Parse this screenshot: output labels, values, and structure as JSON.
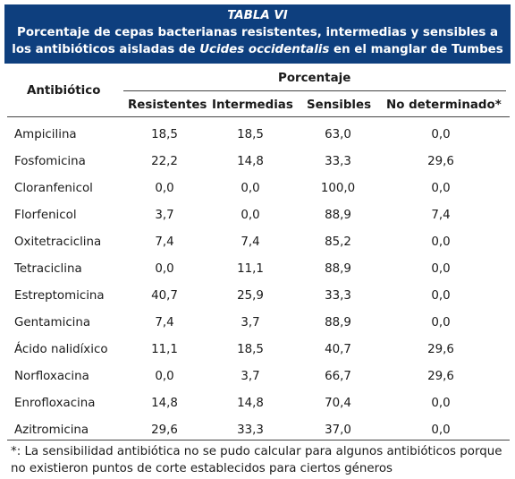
{
  "table": {
    "label": "TABLA VI",
    "title_line1": "Porcentaje de cepas bacterianas resistentes, intermedias y sensibles a",
    "title_line2_pre": "los antibióticos aisladas de ",
    "title_line2_species": "Ucides occidentalis",
    "title_line2_post": " en el manglar de Tumbes",
    "header": {
      "antibiotic": "Antibiótico",
      "group": "Porcentaje",
      "columns": [
        "Resistentes",
        "Intermedias",
        "Sensibles",
        "No determinado*"
      ]
    },
    "rows": [
      {
        "name": "Ampicilina",
        "values": [
          "18,5",
          "18,5",
          "63,0",
          "0,0"
        ]
      },
      {
        "name": "Fosfomicina",
        "values": [
          "22,2",
          "14,8",
          "33,3",
          "29,6"
        ]
      },
      {
        "name": "Cloranfenicol",
        "values": [
          "0,0",
          "0,0",
          "100,0",
          "0,0"
        ]
      },
      {
        "name": "Florfenicol",
        "values": [
          "3,7",
          "0,0",
          "88,9",
          "7,4"
        ]
      },
      {
        "name": "Oxitetraciclina",
        "values": [
          "7,4",
          "7,4",
          "85,2",
          "0,0"
        ]
      },
      {
        "name": "Tetraciclina",
        "values": [
          "0,0",
          "11,1",
          "88,9",
          "0,0"
        ]
      },
      {
        "name": "Estreptomicina",
        "values": [
          "40,7",
          "25,9",
          "33,3",
          "0,0"
        ]
      },
      {
        "name": "Gentamicina",
        "values": [
          "7,4",
          "3,7",
          "88,9",
          "0,0"
        ]
      },
      {
        "name": "Ácido nalidíxico",
        "values": [
          "11,1",
          "18,5",
          "40,7",
          "29,6"
        ]
      },
      {
        "name": "Norfloxacina",
        "values": [
          "0,0",
          "3,7",
          "66,7",
          "29,6"
        ]
      },
      {
        "name": "Enrofloxacina",
        "values": [
          "14,8",
          "14,8",
          "70,4",
          "0,0"
        ]
      },
      {
        "name": "Azitromicina",
        "values": [
          "29,6",
          "33,3",
          "37,0",
          "0,0"
        ]
      }
    ],
    "footnote_line1": "*: La sensibilidad antibiótica no se pudo calcular para algunos antibióticos porque",
    "footnote_line2": "no existieron puntos de corte establecidos para ciertos géneros"
  }
}
